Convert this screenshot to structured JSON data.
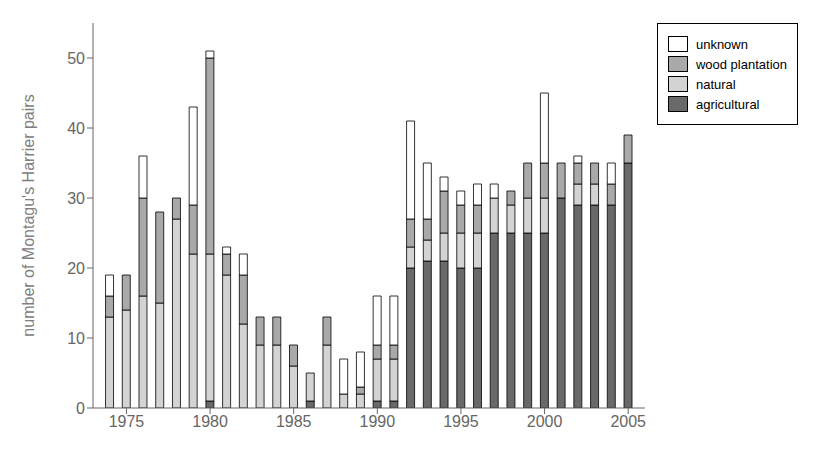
{
  "chart_data": {
    "type": "bar",
    "stacked": true,
    "ylabel": "number of Montagu's Harrier pairs",
    "x": [
      1974,
      1975,
      1976,
      1977,
      1978,
      1979,
      1980,
      1981,
      1982,
      1983,
      1984,
      1985,
      1986,
      1987,
      1988,
      1989,
      1990,
      1991,
      1992,
      1993,
      1994,
      1995,
      1996,
      1997,
      1998,
      1999,
      2000,
      2001,
      2002,
      2003,
      2004,
      2005
    ],
    "series": [
      {
        "name": "agricultural",
        "color": "#696969",
        "values": [
          0,
          0,
          0,
          0,
          0,
          0,
          1,
          0,
          0,
          0,
          0,
          0,
          1,
          0,
          0,
          0,
          1,
          1,
          20,
          21,
          21,
          20,
          20,
          25,
          25,
          25,
          25,
          30,
          29,
          29,
          29,
          35
        ]
      },
      {
        "name": "natural",
        "color": "#d3d3d3",
        "values": [
          13,
          14,
          16,
          15,
          27,
          22,
          21,
          19,
          12,
          9,
          9,
          6,
          4,
          9,
          2,
          2,
          6,
          6,
          3,
          3,
          4,
          5,
          5,
          5,
          4,
          5,
          5,
          0,
          3,
          3,
          0,
          0
        ]
      },
      {
        "name": "wood plantation",
        "color": "#a9a9a9",
        "values": [
          3,
          5,
          14,
          13,
          3,
          7,
          28,
          3,
          7,
          4,
          4,
          3,
          0,
          4,
          0,
          1,
          2,
          2,
          4,
          3,
          6,
          4,
          4,
          0,
          2,
          5,
          5,
          5,
          3,
          3,
          3,
          4
        ]
      },
      {
        "name": "unknown",
        "color": "#ffffff",
        "values": [
          3,
          0,
          6,
          0,
          0,
          14,
          1,
          1,
          3,
          0,
          0,
          0,
          0,
          0,
          5,
          5,
          7,
          7,
          14,
          8,
          2,
          2,
          3,
          2,
          0,
          0,
          10,
          0,
          1,
          0,
          3,
          0
        ]
      }
    ],
    "xlim": [
      1973,
      2006
    ],
    "xticks": [
      1975,
      1980,
      1985,
      1990,
      1995,
      2000,
      2005
    ],
    "ylim": [
      0,
      55
    ],
    "yticks": [
      0,
      10,
      20,
      30,
      40,
      50
    ],
    "grid": false,
    "legend": "right"
  }
}
